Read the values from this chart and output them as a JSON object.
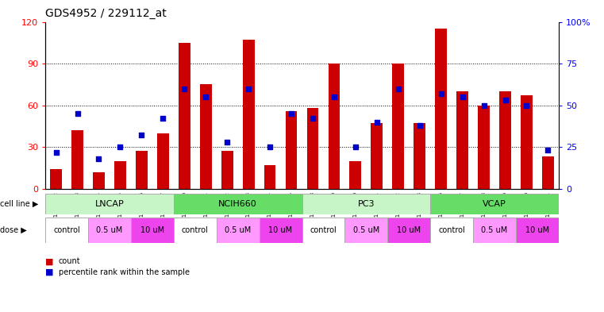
{
  "title": "GDS4952 / 229112_at",
  "samples": [
    "GSM1359772",
    "GSM1359773",
    "GSM1359774",
    "GSM1359775",
    "GSM1359776",
    "GSM1359777",
    "GSM1359760",
    "GSM1359761",
    "GSM1359762",
    "GSM1359763",
    "GSM1359764",
    "GSM1359765",
    "GSM1359778",
    "GSM1359779",
    "GSM1359780",
    "GSM1359781",
    "GSM1359782",
    "GSM1359783",
    "GSM1359766",
    "GSM1359767",
    "GSM1359768",
    "GSM1359769",
    "GSM1359770",
    "GSM1359771"
  ],
  "counts": [
    14,
    42,
    12,
    20,
    27,
    40,
    105,
    75,
    27,
    107,
    17,
    56,
    58,
    90,
    20,
    47,
    90,
    47,
    115,
    70,
    60,
    70,
    67,
    23
  ],
  "percentiles": [
    22,
    45,
    18,
    25,
    32,
    42,
    60,
    55,
    28,
    60,
    25,
    45,
    42,
    55,
    25,
    40,
    60,
    38,
    57,
    55,
    50,
    53,
    50,
    23
  ],
  "cell_lines": [
    {
      "name": "LNCAP",
      "start": 0,
      "end": 6,
      "color": "#c8f5c8"
    },
    {
      "name": "NCIH660",
      "start": 6,
      "end": 12,
      "color": "#66dd66"
    },
    {
      "name": "PC3",
      "start": 12,
      "end": 18,
      "color": "#c8f5c8"
    },
    {
      "name": "VCAP",
      "start": 18,
      "end": 24,
      "color": "#66dd66"
    }
  ],
  "doses": [
    {
      "name": "control",
      "start": 0,
      "end": 2,
      "color": "#ffffff"
    },
    {
      "name": "0.5 uM",
      "start": 2,
      "end": 4,
      "color": "#ff99ff"
    },
    {
      "name": "10 uM",
      "start": 4,
      "end": 6,
      "color": "#ee44ee"
    },
    {
      "name": "control",
      "start": 6,
      "end": 8,
      "color": "#ffffff"
    },
    {
      "name": "0.5 uM",
      "start": 8,
      "end": 10,
      "color": "#ff99ff"
    },
    {
      "name": "10 uM",
      "start": 10,
      "end": 12,
      "color": "#ee44ee"
    },
    {
      "name": "control",
      "start": 12,
      "end": 14,
      "color": "#ffffff"
    },
    {
      "name": "0.5 uM",
      "start": 14,
      "end": 16,
      "color": "#ff99ff"
    },
    {
      "name": "10 uM",
      "start": 16,
      "end": 18,
      "color": "#ee44ee"
    },
    {
      "name": "control",
      "start": 18,
      "end": 20,
      "color": "#ffffff"
    },
    {
      "name": "0.5 uM",
      "start": 20,
      "end": 22,
      "color": "#ff99ff"
    },
    {
      "name": "10 uM",
      "start": 22,
      "end": 24,
      "color": "#ee44ee"
    }
  ],
  "bar_color": "#cc0000",
  "dot_color": "#0000cc",
  "ylim_left": [
    0,
    120
  ],
  "ylim_right": [
    0,
    100
  ],
  "yticks_left": [
    0,
    30,
    60,
    90,
    120
  ],
  "yticks_right": [
    0,
    25,
    50,
    75,
    100
  ],
  "yticklabels_right": [
    "0",
    "25",
    "50",
    "75",
    "100%"
  ],
  "grid_values": [
    30,
    60,
    90
  ],
  "title_fontsize": 10,
  "bar_width": 0.55,
  "bg_color": "#ffffff",
  "legend_count_color": "#cc0000",
  "legend_pct_color": "#0000cc"
}
